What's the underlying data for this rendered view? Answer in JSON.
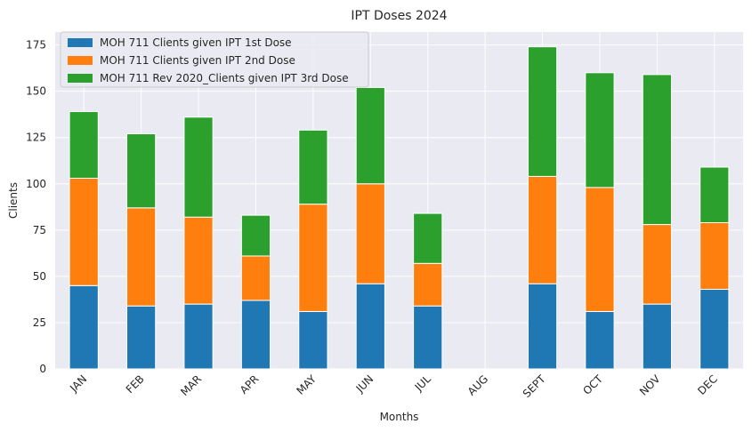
{
  "chart_data": {
    "type": "bar",
    "stacked": true,
    "title": "IPT Doses 2024",
    "xlabel": "Months",
    "ylabel": "Clients",
    "ylim": [
      0,
      182
    ],
    "yticks": [
      0,
      25,
      50,
      75,
      100,
      125,
      150,
      175
    ],
    "grid": true,
    "legend_position": "top-left",
    "categories": [
      "JAN",
      "FEB",
      "MAR",
      "APR",
      "MAY",
      "JUN",
      "JUL",
      "AUG",
      "SEPT",
      "OCT",
      "NOV",
      "DEC"
    ],
    "series": [
      {
        "name": "MOH 711 Clients given IPT 1st Dose",
        "color": "#1f77b4",
        "values": [
          45,
          34,
          35,
          37,
          31,
          46,
          34,
          0,
          46,
          31,
          35,
          43
        ]
      },
      {
        "name": "MOH 711 Clients given IPT 2nd Dose",
        "color": "#ff7f0e",
        "values": [
          58,
          53,
          47,
          24,
          58,
          54,
          23,
          0,
          58,
          67,
          43,
          36
        ]
      },
      {
        "name": "MOH 711 Rev 2020_Clients given IPT 3rd Dose",
        "color": "#2ca02c",
        "values": [
          36,
          40,
          54,
          22,
          40,
          52,
          27,
          0,
          70,
          62,
          81,
          30
        ]
      }
    ],
    "style": {
      "plot_background": "#eaeaf2",
      "grid_color": "#ffffff"
    }
  }
}
